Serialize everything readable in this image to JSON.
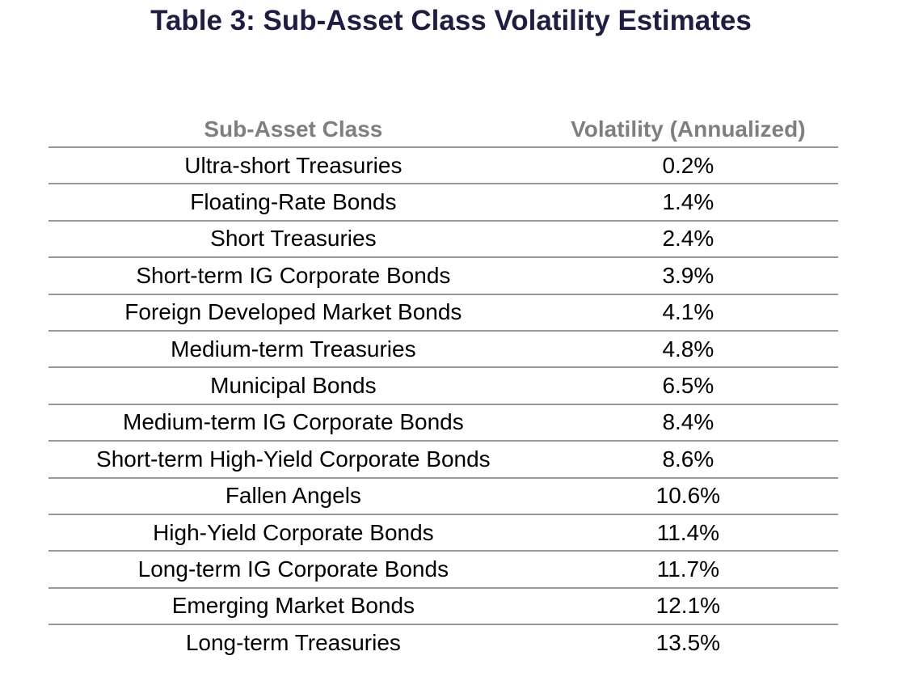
{
  "title": {
    "text": "Table 3: Sub-Asset Class Volatility Estimates"
  },
  "table": {
    "headers": [
      "Sub-Asset Class",
      "Volatility (Annualized)"
    ],
    "rows": [
      {
        "sub_asset_class": "Ultra-short Treasuries",
        "volatility": "0.2%"
      },
      {
        "sub_asset_class": "Floating-Rate Bonds",
        "volatility": "1.4%"
      },
      {
        "sub_asset_class": "Short Treasuries",
        "volatility": "2.4%"
      },
      {
        "sub_asset_class": "Short-term IG Corporate Bonds",
        "volatility": "3.9%"
      },
      {
        "sub_asset_class": "Foreign Developed Market Bonds",
        "volatility": "4.1%"
      },
      {
        "sub_asset_class": "Medium-term Treasuries",
        "volatility": "4.8%"
      },
      {
        "sub_asset_class": "Municipal Bonds",
        "volatility": "6.5%"
      },
      {
        "sub_asset_class": "Medium-term IG Corporate Bonds",
        "volatility": "8.4%"
      },
      {
        "sub_asset_class": "Short-term High-Yield Corporate Bonds",
        "volatility": "8.6%"
      },
      {
        "sub_asset_class": "Fallen Angels",
        "volatility": "10.6%"
      },
      {
        "sub_asset_class": "High-Yield Corporate Bonds",
        "volatility": "11.4%"
      },
      {
        "sub_asset_class": "Long-term IG Corporate Bonds",
        "volatility": "11.7%"
      },
      {
        "sub_asset_class": "Emerging Market Bonds",
        "volatility": "12.1%"
      },
      {
        "sub_asset_class": "Long-term Treasuries",
        "volatility": "13.5%"
      }
    ]
  },
  "colors": {
    "title_text": "#1e1e42",
    "header_text": "#7f7f7f",
    "separator_line": "#999999",
    "body_text": "#000000",
    "background": "#ffffff"
  },
  "chart_data": {
    "type": "table",
    "title": "Table 3: Sub-Asset Class Volatility Estimates",
    "columns": [
      "Sub-Asset Class",
      "Volatility (Annualized)"
    ],
    "categories": [
      "Ultra-short Treasuries",
      "Floating-Rate Bonds",
      "Short Treasuries",
      "Short-term IG Corporate Bonds",
      "Foreign Developed Market Bonds",
      "Medium-term Treasuries",
      "Municipal Bonds",
      "Medium-term IG Corporate Bonds",
      "Short-term High-Yield Corporate Bonds",
      "Fallen Angels",
      "High-Yield Corporate Bonds",
      "Long-term IG Corporate Bonds",
      "Emerging Market Bonds",
      "Long-term Treasuries"
    ],
    "values_pct": [
      0.2,
      1.4,
      2.4,
      3.9,
      4.1,
      4.8,
      6.5,
      8.4,
      8.6,
      10.6,
      11.4,
      11.7,
      12.1,
      13.5
    ],
    "value_unit": "%",
    "value_label": "Volatility (Annualized)"
  }
}
